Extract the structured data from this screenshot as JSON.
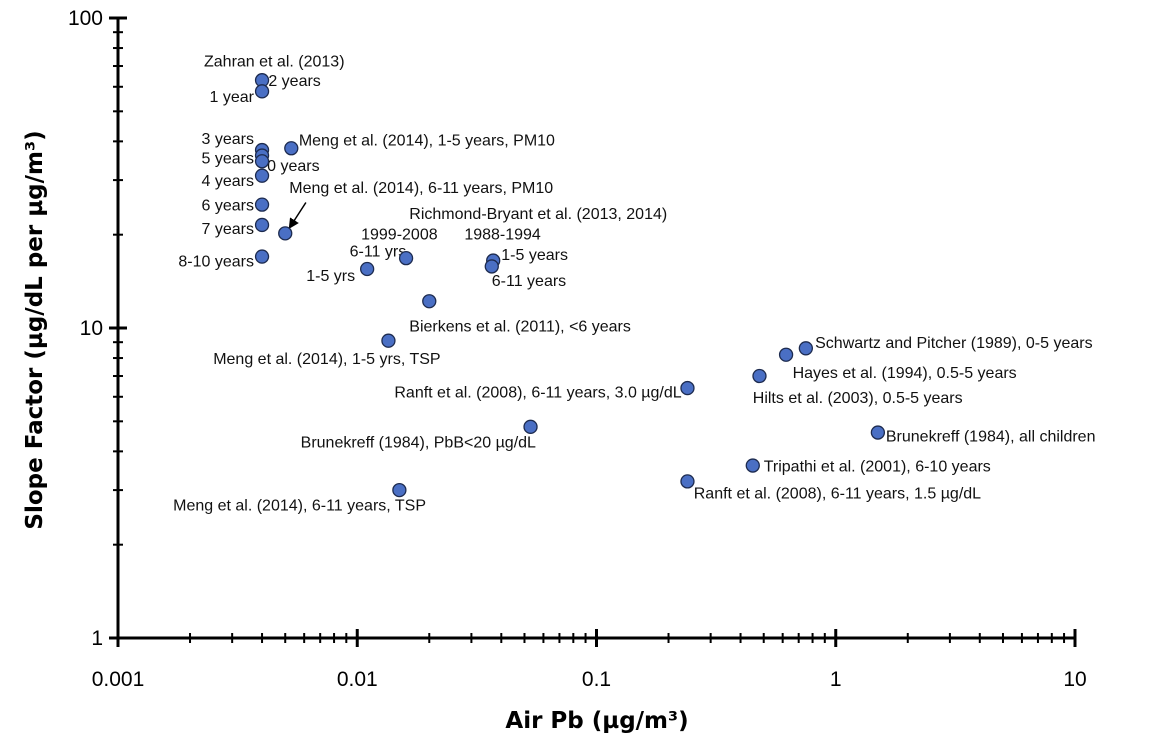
{
  "chart_data": {
    "type": "scatter",
    "x_scale": "log",
    "y_scale": "log",
    "xlim": [
      0.001,
      10
    ],
    "ylim": [
      1,
      100
    ],
    "grid": false,
    "legend": "none",
    "xlabel": "Air Pb (µg/m³)",
    "ylabel": "Slope Factor (µg/dL per µg/m³)",
    "x_ticks": [
      "0.001",
      "0.01",
      "0.1",
      "1",
      "10"
    ],
    "y_ticks": [
      "1",
      "10",
      "100"
    ],
    "marker_color": "#4a6fc4",
    "points": [
      {
        "x": 0.004,
        "y": 63
      },
      {
        "x": 0.004,
        "y": 58
      },
      {
        "x": 0.004,
        "y": 37.5
      },
      {
        "x": 0.004,
        "y": 36
      },
      {
        "x": 0.004,
        "y": 34.5
      },
      {
        "x": 0.004,
        "y": 31
      },
      {
        "x": 0.004,
        "y": 25
      },
      {
        "x": 0.004,
        "y": 21.5
      },
      {
        "x": 0.004,
        "y": 17
      },
      {
        "x": 0.0053,
        "y": 38
      },
      {
        "x": 0.005,
        "y": 20.2
      },
      {
        "x": 0.011,
        "y": 15.5
      },
      {
        "x": 0.016,
        "y": 16.8
      },
      {
        "x": 0.037,
        "y": 16.5
      },
      {
        "x": 0.0365,
        "y": 15.8
      },
      {
        "x": 0.02,
        "y": 12.2
      },
      {
        "x": 0.0135,
        "y": 9.1
      },
      {
        "x": 0.015,
        "y": 3.0
      },
      {
        "x": 0.053,
        "y": 4.8
      },
      {
        "x": 0.24,
        "y": 6.4
      },
      {
        "x": 0.24,
        "y": 3.2
      },
      {
        "x": 0.45,
        "y": 3.6
      },
      {
        "x": 0.48,
        "y": 7.0
      },
      {
        "x": 0.62,
        "y": 8.2
      },
      {
        "x": 0.75,
        "y": 8.6
      },
      {
        "x": 1.5,
        "y": 4.6
      }
    ],
    "annotations": [
      {
        "text": "Zahran et al. (2013)",
        "x": 0.0045,
        "y": 73,
        "anchor": "middle"
      },
      {
        "text": "2 years",
        "x": 0.00425,
        "y": 63,
        "anchor": "start"
      },
      {
        "text": "1 year",
        "x": 0.0037,
        "y": 56,
        "anchor": "end"
      },
      {
        "text": "3 years",
        "x": 0.0037,
        "y": 41,
        "anchor": "end"
      },
      {
        "text": "5 years",
        "x": 0.0037,
        "y": 35.5,
        "anchor": "end"
      },
      {
        "text": "0 years",
        "x": 0.0042,
        "y": 33.5,
        "anchor": "start"
      },
      {
        "text": "4 years",
        "x": 0.0037,
        "y": 30,
        "anchor": "end"
      },
      {
        "text": "6 years",
        "x": 0.0037,
        "y": 25,
        "anchor": "end"
      },
      {
        "text": "7 years",
        "x": 0.0037,
        "y": 21,
        "anchor": "end"
      },
      {
        "text": "8-10 years",
        "x": 0.0037,
        "y": 16.5,
        "anchor": "end"
      },
      {
        "text": "Meng et al. (2014), 1-5 years, PM10",
        "x": 0.0057,
        "y": 40.5,
        "anchor": "start"
      },
      {
        "text": "Meng et al. (2014), 6-11 years, PM10",
        "x": 0.0052,
        "y": 28.5,
        "anchor": "start"
      },
      {
        "text": "Richmond-Bryant et al. (2013, 2014)",
        "x": 0.0165,
        "y": 23.5,
        "anchor": "start"
      },
      {
        "text": "1999-2008",
        "x": 0.015,
        "y": 20.2,
        "anchor": "middle"
      },
      {
        "text": "1988-1994",
        "x": 0.0405,
        "y": 20.2,
        "anchor": "middle"
      },
      {
        "text": "6-11 yrs",
        "x": 0.0122,
        "y": 17.8,
        "anchor": "middle"
      },
      {
        "text": "1-5 yrs",
        "x": 0.0098,
        "y": 14.8,
        "anchor": "end"
      },
      {
        "text": "1-5 years",
        "x": 0.04,
        "y": 17.3,
        "anchor": "start"
      },
      {
        "text": "6-11 years",
        "x": 0.0365,
        "y": 14.3,
        "anchor": "start"
      },
      {
        "text": "Bierkens et al. (2011), <6 years",
        "x": 0.0165,
        "y": 10.2,
        "anchor": "start"
      },
      {
        "text": "Meng et al. (2014), 1-5 yrs, TSP",
        "x": 0.0025,
        "y": 8.0,
        "anchor": "start"
      },
      {
        "text": "Ranft et al. (2008), 6-11 years, 3.0 µg/dL",
        "x": 0.227,
        "y": 6.25,
        "anchor": "end"
      },
      {
        "text": "Brunekreff (1984), PbB<20 µg/dL",
        "x": 0.0058,
        "y": 4.3,
        "anchor": "start"
      },
      {
        "text": "Meng et al. (2014), 6-11 years, TSP",
        "x": 0.0017,
        "y": 2.7,
        "anchor": "start"
      },
      {
        "text": "Schwartz and Pitcher (1989), 0-5 years",
        "x": 0.82,
        "y": 9.0,
        "anchor": "start"
      },
      {
        "text": "Hayes et al. (1994), 0.5-5 years",
        "x": 0.66,
        "y": 7.2,
        "anchor": "start"
      },
      {
        "text": "Hilts et al. (2003), 0.5-5 years",
        "x": 0.45,
        "y": 6.0,
        "anchor": "start"
      },
      {
        "text": "Brunekreff (1984), all children",
        "x": 1.62,
        "y": 4.5,
        "anchor": "start"
      },
      {
        "text": "Tripathi et al. (2001), 6-10 years",
        "x": 0.5,
        "y": 3.6,
        "anchor": "start"
      },
      {
        "text": "Ranft et al. (2008), 6-11 years, 1.5 µg/dL",
        "x": 0.255,
        "y": 2.95,
        "anchor": "start"
      }
    ],
    "arrow": {
      "from": {
        "x": 0.0061,
        "y": 25.4
      },
      "to": {
        "x": 0.0052,
        "y": 21.0
      }
    }
  }
}
